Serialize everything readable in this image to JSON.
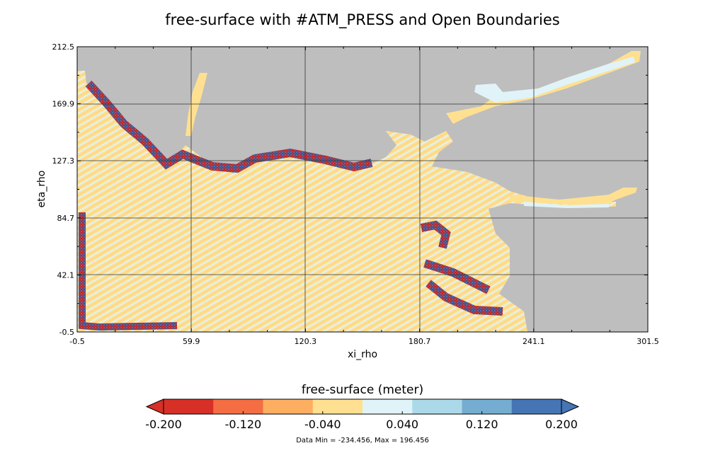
{
  "chart_data": {
    "type": "heatmap",
    "title": "free-surface with #ATM_PRESS and Open Boundaries",
    "xlabel": "xi_rho",
    "ylabel": "eta_rho",
    "xlim": [
      -0.5,
      301.5
    ],
    "ylim": [
      -0.5,
      212.5
    ],
    "x_ticks": [
      "-0.5",
      "59.9",
      "120.3",
      "180.7",
      "241.1",
      "301.5"
    ],
    "y_ticks": [
      "-0.5",
      "42.1",
      "84.7",
      "127.3",
      "169.9",
      "212.5"
    ],
    "grid": true,
    "masked_color": "#bebebe",
    "colorbar": {
      "label": "free-surface (meter)",
      "levels": [
        -0.2,
        -0.15,
        -0.1,
        -0.05,
        0.0,
        0.05,
        0.1,
        0.15,
        0.2
      ],
      "colors": [
        "#d73027",
        "#f46d43",
        "#fdae61",
        "#fee090",
        "#e0f3f8",
        "#abd9e9",
        "#74add1",
        "#4575b4"
      ],
      "tick_labels": [
        "-0.200",
        "-0.120",
        "-0.040",
        "0.040",
        "0.120",
        "0.200"
      ],
      "extend": "both",
      "under_color": "#d73027",
      "over_color": "#4575b4"
    },
    "data_min": -234.456,
    "data_max": 196.456,
    "stats_text": "Data Min = -234.456, Max = 196.456"
  }
}
